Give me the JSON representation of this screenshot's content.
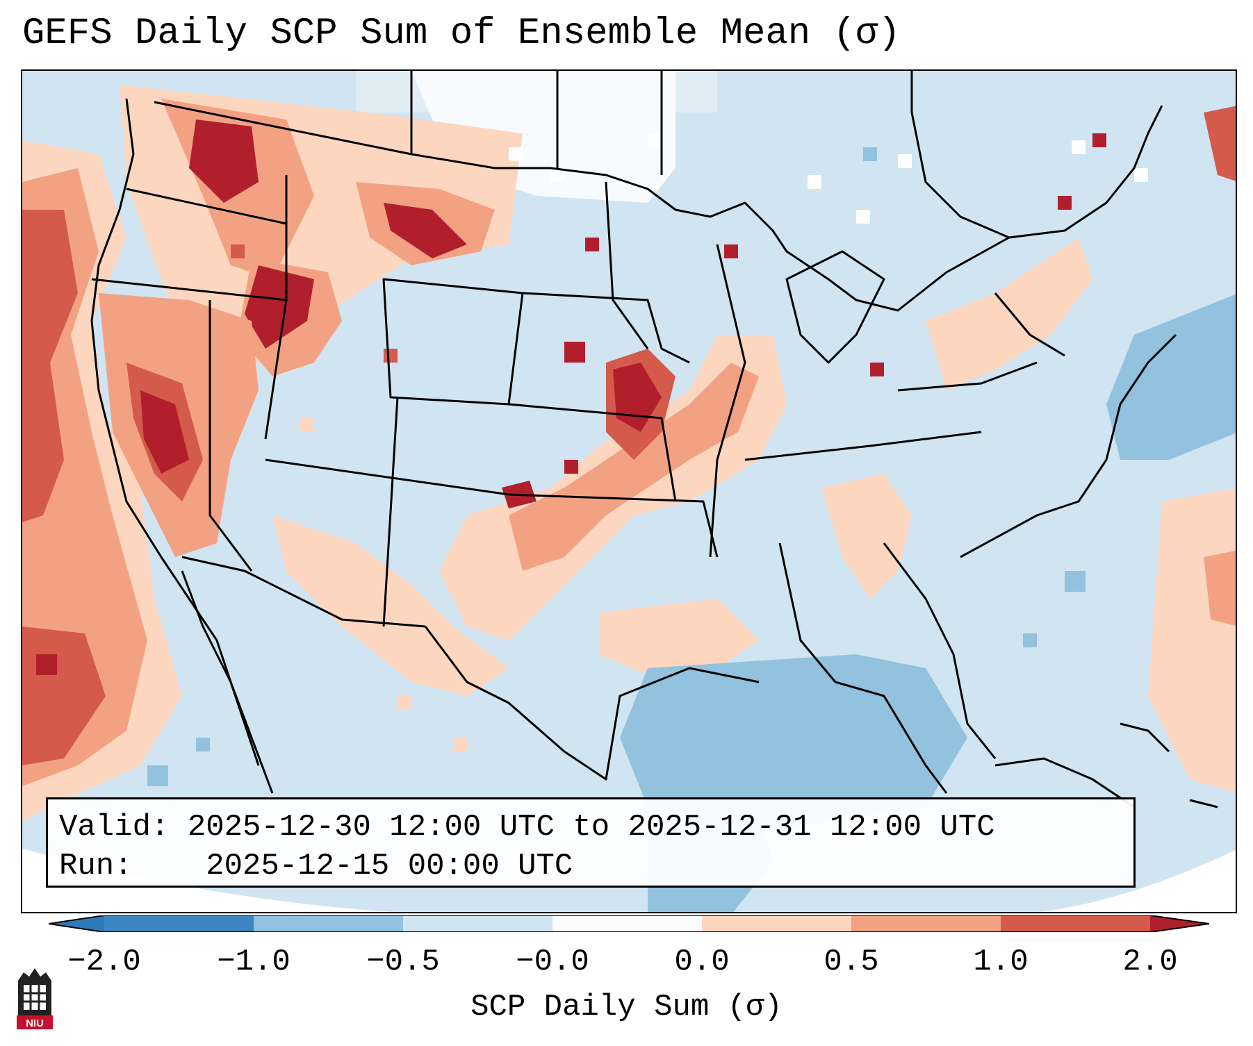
{
  "title": "GEFS Daily SCP Sum of Ensemble Mean (σ)",
  "info": {
    "valid_label": "Valid:",
    "valid_value": "2025-12-30 12:00 UTC to 2025-12-31 12:00 UTC",
    "run_label": "Run:",
    "run_value": "2025-12-15 00:00 UTC"
  },
  "colorbar": {
    "title": "SCP Daily Sum (σ)",
    "ticks": [
      "−2.0",
      "−1.0",
      "−0.5",
      "−0.0",
      "0.0",
      "0.5",
      "1.0",
      "2.0"
    ],
    "colors": [
      "#2f7ab9",
      "#5d9ccb",
      "#93c2de",
      "#d0e4f1",
      "#fbfbfb",
      "#fdd6c0",
      "#f2a283",
      "#d45a4c",
      "#b11f2d"
    ]
  },
  "logo_text": "NIU",
  "chart_data": {
    "type": "heatmap",
    "title": "GEFS Daily SCP Sum of Ensemble Mean (σ)",
    "variable": "SCP Daily Sum (σ)",
    "levels": [
      -2.0,
      -1.0,
      -0.5,
      -0.0,
      0.0,
      0.5,
      1.0,
      2.0
    ],
    "region": "CONUS",
    "highlights": [
      {
        "area": "Pacific Northwest / Idaho",
        "range": "1.0 to 2.0"
      },
      {
        "area": "Northern California / Nevada",
        "range": "1.0 to 2.0"
      },
      {
        "area": "Iowa / Missouri / Illinois",
        "range": "1.0 to 2.0"
      },
      {
        "area": "Oklahoma / Kansas",
        "range": "0.5 to 2.0"
      },
      {
        "area": "Gulf of Mexico",
        "range": "-1.0 to -0.5"
      }
    ]
  }
}
